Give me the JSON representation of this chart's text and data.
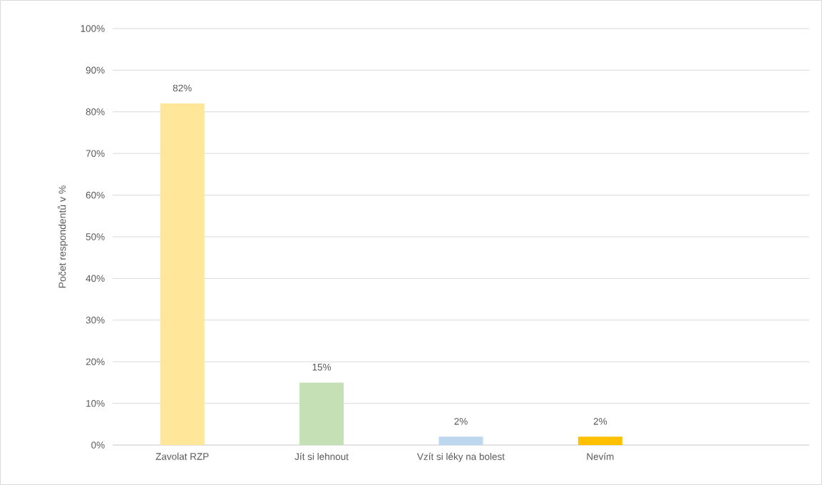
{
  "chart_data": {
    "type": "bar",
    "ylabel": "Počet respondentů v %",
    "categories": [
      "Zavolat RZP",
      "Jít si lehnout",
      "Vzít si léky na bolest",
      "Nevím",
      null
    ],
    "values": [
      82,
      15,
      2,
      2,
      null
    ],
    "colors": [
      "#ffe699",
      "#c5e0b4",
      "#bdd7ee",
      "#ffc000",
      "#ffffff"
    ],
    "value_labels": [
      "82%",
      "15%",
      "2%",
      "2%",
      null
    ],
    "ylim": [
      0,
      100
    ],
    "yticks": [
      {
        "value": 0,
        "label": "0%"
      },
      {
        "value": 10,
        "label": "10%"
      },
      {
        "value": 20,
        "label": "20%"
      },
      {
        "value": 30,
        "label": "30%"
      },
      {
        "value": 40,
        "label": "40%"
      },
      {
        "value": 50,
        "label": "50%"
      },
      {
        "value": 60,
        "label": "60%"
      },
      {
        "value": 70,
        "label": "70%"
      },
      {
        "value": 80,
        "label": "80%"
      },
      {
        "value": 90,
        "label": "90%"
      },
      {
        "value": 100,
        "label": "100%"
      }
    ],
    "grid": "y"
  }
}
